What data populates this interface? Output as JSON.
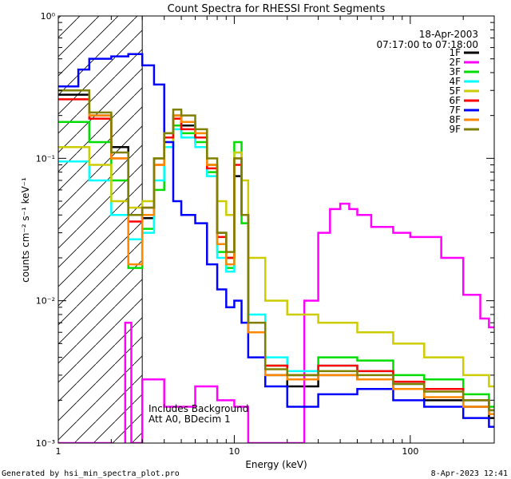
{
  "chart_data": {
    "type": "line",
    "title": "Count Spectra for RHESSI Front Segments",
    "xlabel": "Energy (keV)",
    "ylabel": "counts cm⁻² s⁻¹ keV⁻¹",
    "x_scale": "log",
    "y_scale": "log",
    "xlim": [
      1,
      300
    ],
    "ylim": [
      0.001,
      1
    ],
    "x_ticks": [
      1,
      10,
      100
    ],
    "x_tick_labels": [
      "1",
      "10",
      "100"
    ],
    "y_ticks": [
      0.001,
      0.01,
      0.1,
      1
    ],
    "y_tick_labels": [
      "10⁻³",
      "10⁻²",
      "10⁻¹",
      "10⁰"
    ],
    "shaded_region_kev": [
      1,
      3
    ],
    "date": "18-Apr-2003",
    "time_range": "07:17:00 to 07:18:00",
    "annotation_lines": [
      "Includes Background",
      "Att A0, BDecim 1"
    ],
    "series": [
      {
        "name": "1F",
        "color": "#000000",
        "x": [
          1.1,
          1.5,
          2,
          2.5,
          3,
          3.5,
          4,
          4.5,
          5,
          6,
          7,
          8,
          9,
          10,
          11,
          12,
          15,
          20,
          30,
          50,
          80,
          120,
          200,
          280
        ],
        "values": [
          0.28,
          0.2,
          0.12,
          0.04,
          0.038,
          0.1,
          0.14,
          0.2,
          0.17,
          0.14,
          0.09,
          0.03,
          0.02,
          0.075,
          0.04,
          0.006,
          0.003,
          0.0025,
          0.003,
          0.0028,
          0.0024,
          0.002,
          0.0018,
          0.0015
        ]
      },
      {
        "name": "2F",
        "color": "#ff00ff",
        "x": [
          1.1,
          1.5,
          2,
          2.4,
          2.6,
          3,
          4,
          6,
          8,
          10,
          12,
          15,
          20,
          25,
          30,
          35,
          40,
          45,
          50,
          60,
          80,
          100,
          150,
          200,
          250,
          280
        ],
        "values": [
          0.001,
          0.001,
          0.0007,
          0.007,
          0.001,
          0.0028,
          0.0018,
          0.0025,
          0.002,
          0.0018,
          0.001,
          0.001,
          0.001,
          0.01,
          0.03,
          0.044,
          0.048,
          0.044,
          0.04,
          0.033,
          0.03,
          0.028,
          0.02,
          0.011,
          0.0075,
          0.0065
        ]
      },
      {
        "name": "3F",
        "color": "#00dd00",
        "x": [
          1.1,
          1.5,
          2,
          2.5,
          3,
          3.5,
          4,
          4.5,
          5,
          6,
          7,
          8,
          9,
          10,
          11,
          12,
          15,
          20,
          30,
          50,
          80,
          120,
          200,
          280
        ],
        "values": [
          0.18,
          0.13,
          0.07,
          0.017,
          0.032,
          0.06,
          0.12,
          0.17,
          0.15,
          0.13,
          0.08,
          0.022,
          0.017,
          0.13,
          0.035,
          0.007,
          0.0035,
          0.003,
          0.004,
          0.0038,
          0.003,
          0.0028,
          0.0022,
          0.0018
        ]
      },
      {
        "name": "4F",
        "color": "#00ffff",
        "x": [
          1.1,
          1.5,
          2,
          2.5,
          3,
          3.5,
          4,
          4.5,
          5,
          6,
          7,
          8,
          9,
          10,
          11,
          12,
          15,
          20,
          30,
          50,
          80,
          120,
          200,
          280
        ],
        "values": [
          0.095,
          0.07,
          0.04,
          0.027,
          0.03,
          0.07,
          0.12,
          0.16,
          0.14,
          0.12,
          0.075,
          0.02,
          0.016,
          0.11,
          0.04,
          0.008,
          0.004,
          0.0032,
          0.0035,
          0.0032,
          0.0026,
          0.0024,
          0.002,
          0.0017
        ]
      },
      {
        "name": "5F",
        "color": "#cccc00",
        "x": [
          1.1,
          1.5,
          2,
          2.5,
          3,
          3.5,
          4,
          4.5,
          5,
          6,
          7,
          8,
          9,
          10,
          11,
          12,
          15,
          20,
          30,
          50,
          80,
          120,
          200,
          280
        ],
        "values": [
          0.12,
          0.09,
          0.05,
          0.045,
          0.05,
          0.1,
          0.13,
          0.19,
          0.18,
          0.15,
          0.09,
          0.05,
          0.04,
          0.11,
          0.07,
          0.02,
          0.01,
          0.008,
          0.007,
          0.006,
          0.005,
          0.004,
          0.003,
          0.0025
        ]
      },
      {
        "name": "6F",
        "color": "#ff0000",
        "x": [
          1.1,
          1.5,
          2,
          2.5,
          3,
          3.5,
          4,
          4.5,
          5,
          6,
          7,
          8,
          9,
          10,
          11,
          12,
          15,
          20,
          30,
          50,
          80,
          120,
          200,
          280
        ],
        "values": [
          0.26,
          0.19,
          0.1,
          0.036,
          0.045,
          0.09,
          0.14,
          0.19,
          0.16,
          0.14,
          0.085,
          0.028,
          0.02,
          0.09,
          0.04,
          0.007,
          0.0035,
          0.003,
          0.0035,
          0.0032,
          0.0027,
          0.0024,
          0.002,
          0.0017
        ]
      },
      {
        "name": "7F",
        "color": "#0000ff",
        "x": [
          1.1,
          1.3,
          1.5,
          2,
          2.5,
          3,
          3.5,
          4,
          4.5,
          5,
          6,
          7,
          8,
          9,
          10,
          11,
          12,
          15,
          20,
          30,
          50,
          80,
          120,
          200,
          280
        ],
        "values": [
          0.32,
          0.42,
          0.5,
          0.52,
          0.54,
          0.45,
          0.33,
          0.13,
          0.05,
          0.04,
          0.035,
          0.018,
          0.012,
          0.009,
          0.01,
          0.007,
          0.004,
          0.0025,
          0.0018,
          0.0022,
          0.0024,
          0.002,
          0.0018,
          0.0015,
          0.0013
        ]
      },
      {
        "name": "8F",
        "color": "#ff8800",
        "x": [
          1.1,
          1.5,
          2,
          2.5,
          3,
          3.5,
          4,
          4.5,
          5,
          6,
          7,
          8,
          9,
          10,
          11,
          12,
          15,
          20,
          30,
          50,
          80,
          120,
          200,
          280
        ],
        "values": [
          0.3,
          0.2,
          0.1,
          0.018,
          0.04,
          0.09,
          0.15,
          0.2,
          0.18,
          0.15,
          0.09,
          0.025,
          0.018,
          0.1,
          0.04,
          0.006,
          0.003,
          0.0028,
          0.003,
          0.0028,
          0.0024,
          0.0021,
          0.0018,
          0.0016
        ]
      },
      {
        "name": "9F",
        "color": "#808000",
        "x": [
          1.1,
          1.5,
          2,
          2.5,
          3,
          3.5,
          4,
          4.5,
          5,
          6,
          7,
          8,
          9,
          10,
          11,
          12,
          15,
          20,
          30,
          50,
          80,
          120,
          200,
          280
        ],
        "values": [
          0.3,
          0.21,
          0.11,
          0.04,
          0.045,
          0.1,
          0.15,
          0.22,
          0.2,
          0.16,
          0.1,
          0.03,
          0.022,
          0.1,
          0.04,
          0.007,
          0.0033,
          0.003,
          0.0032,
          0.003,
          0.0026,
          0.0023,
          0.002,
          0.0017
        ]
      }
    ]
  },
  "footer": {
    "left": "Generated by hsi_min_spectra_plot.pro",
    "right": "8-Apr-2023 12:41"
  }
}
